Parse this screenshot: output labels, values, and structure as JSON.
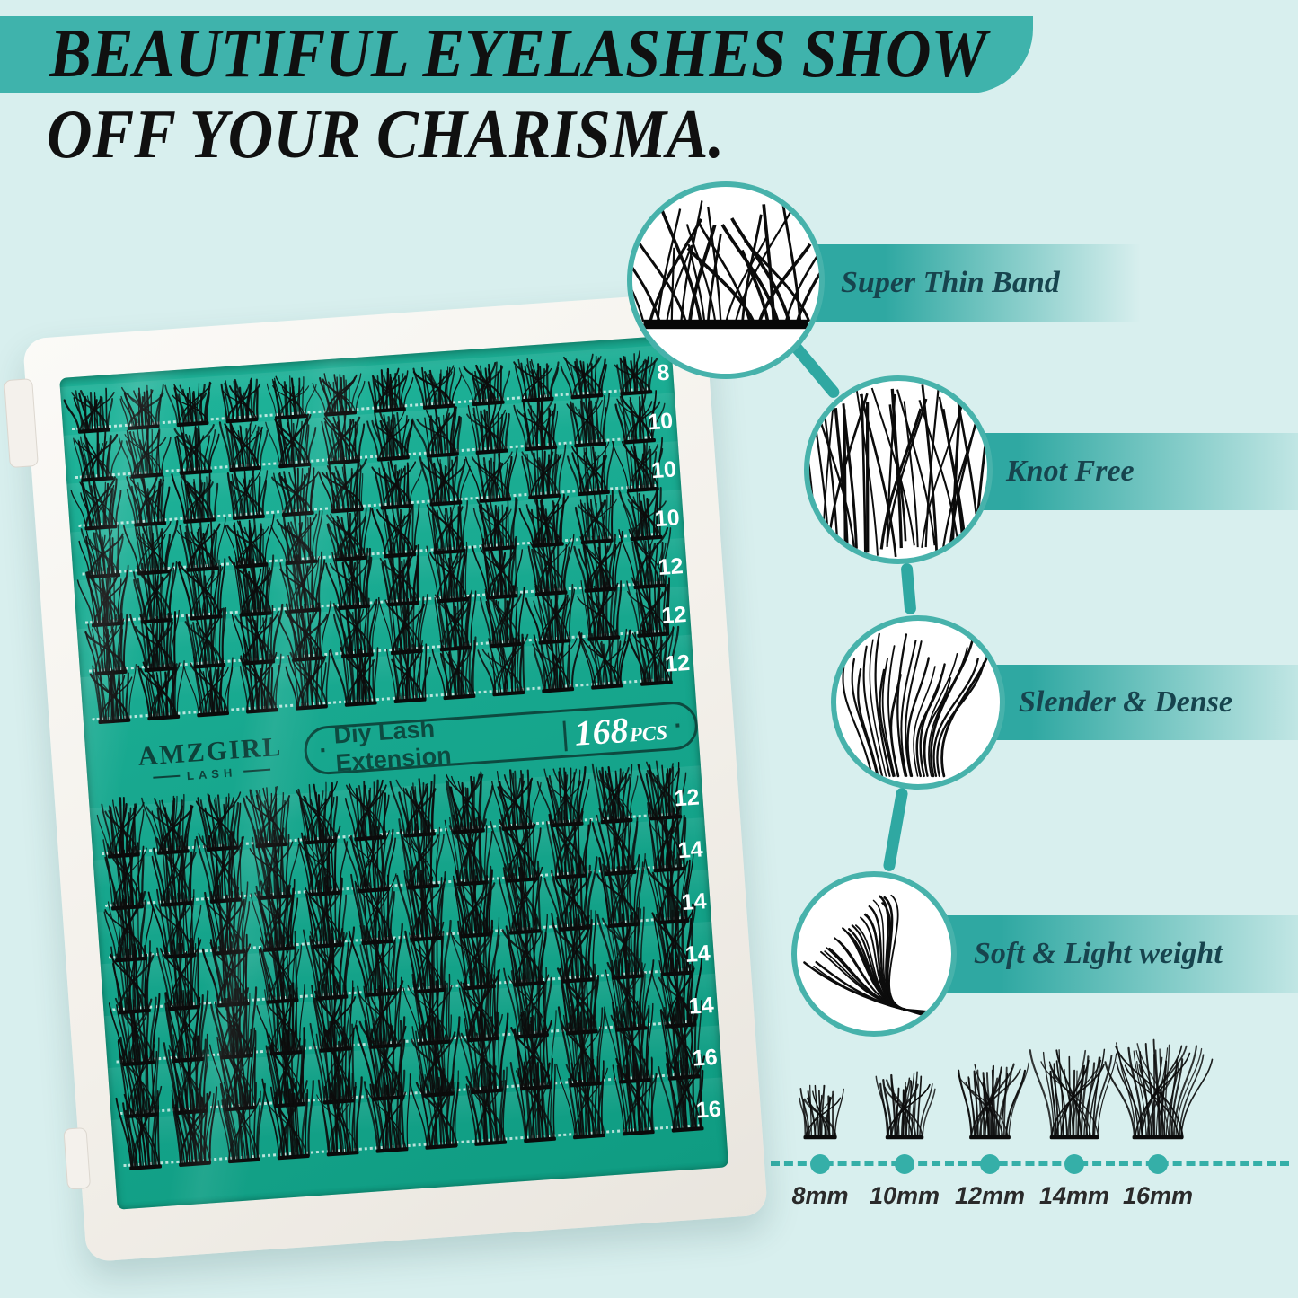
{
  "headline": {
    "line1": "BEAUTIFUL EYELASHES SHOW",
    "line2": "OFF YOUR CHARISMA."
  },
  "tray": {
    "brand": "AMZGIRL",
    "brand_sub": "LASH",
    "left_dot": "·",
    "product_label": "Diy Lash Extension",
    "divider": "|",
    "count": "168",
    "count_unit": "PCS",
    "right_dot": "·",
    "clusters_per_row": 12,
    "row_sizes_top": [
      "8",
      "10",
      "10",
      "10",
      "12",
      "12",
      "12"
    ],
    "row_sizes_bottom": [
      "12",
      "14",
      "14",
      "14",
      "14",
      "16",
      "16"
    ]
  },
  "features": [
    {
      "label": "Super Thin Band"
    },
    {
      "label": "Knot Free"
    },
    {
      "label": "Slender & Dense"
    },
    {
      "label": "Soft & Light weight"
    }
  ],
  "size_chart": {
    "sizes": [
      "8mm",
      "10mm",
      "12mm",
      "14mm",
      "16mm"
    ]
  },
  "colors": {
    "background": "#d8efee",
    "banner": "#3fb3ac",
    "tray": "#17a78e",
    "ribbon": "#2fa8a2",
    "ring": "#47b2ab",
    "text_dark": "#17444e",
    "brand_dark": "#0e413a",
    "white": "#ffffff",
    "dot": "#35afa8",
    "size_label": "#2a2a2a"
  }
}
